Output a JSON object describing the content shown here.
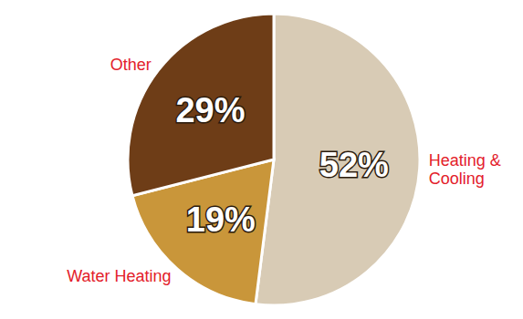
{
  "chart_data": {
    "type": "pie",
    "categories": [
      "Heating & Cooling",
      "Water Heating",
      "Other"
    ],
    "values": [
      52,
      19,
      29
    ],
    "value_labels": [
      "52%",
      "19%",
      "29%"
    ],
    "colors": [
      "#d8cbb5",
      "#c9963a",
      "#6e3d17"
    ],
    "data_labels": true
  }
}
